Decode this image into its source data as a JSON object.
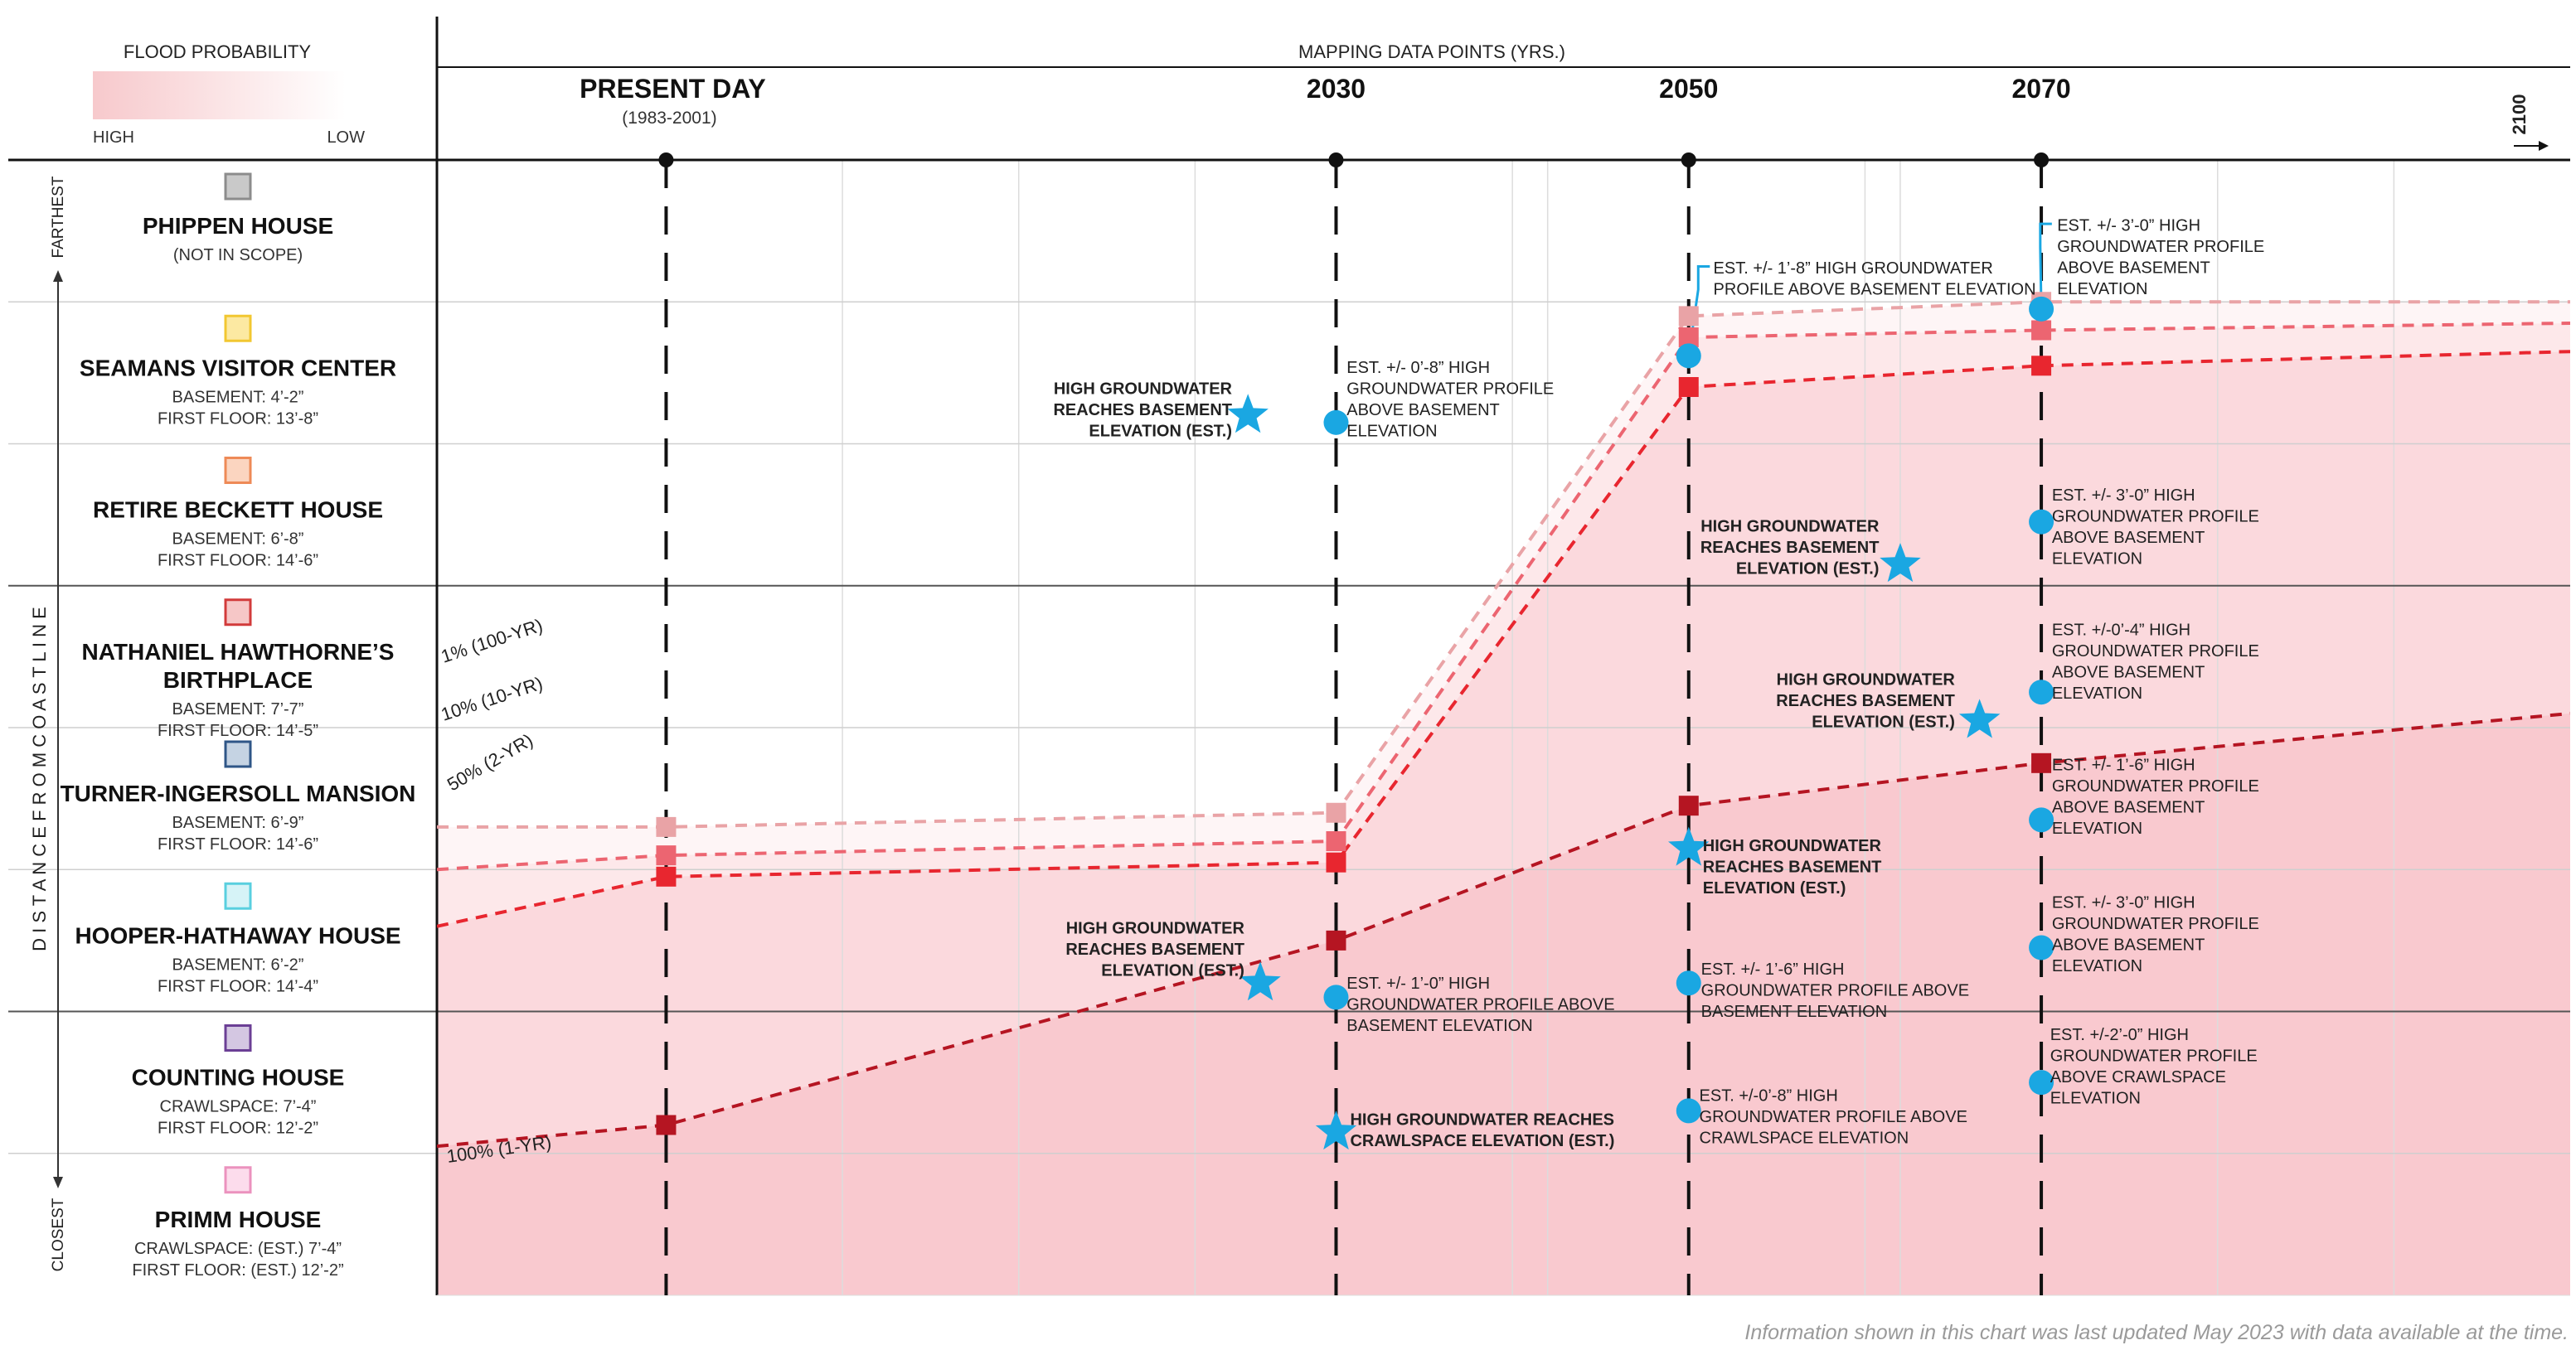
{
  "chart_data": {
    "type": "line",
    "header": "MAPPING DATA POINTS (YRS.)",
    "legend": {
      "title": "FLOOD PROBABILITY",
      "high": "HIGH",
      "low": "LOW"
    },
    "y_axis": {
      "label": "DISTANCE FROM COASTLINE",
      "top_label": "FARTHEST",
      "bottom_label": "CLOSEST"
    },
    "years": [
      {
        "label": "PRESENT DAY",
        "sub": "(1983-2001)",
        "value": 1992
      },
      {
        "label": "2030",
        "value": 2030
      },
      {
        "label": "2050",
        "value": 2050
      },
      {
        "label": "2070",
        "value": 2070
      }
    ],
    "end_label": "2100",
    "x_range": [
      1983,
      2100
    ],
    "y_range": [
      0,
      8
    ],
    "buildings": [
      {
        "name": "PHIPPEN HOUSE",
        "details": [
          "(NOT IN SCOPE)"
        ],
        "color": "#c9c9c9",
        "edge": "#8c8c8c"
      },
      {
        "name": "SEAMANS VISITOR CENTER",
        "details": [
          "BASEMENT: 4’-2”",
          "FIRST FLOOR: 13’-8”"
        ],
        "color": "#fce9a2",
        "edge": "#f2c731"
      },
      {
        "name": "RETIRE BECKETT HOUSE",
        "details": [
          "BASEMENT: 6’-8”",
          "FIRST FLOOR: 14’-6”"
        ],
        "color": "#fbd5c0",
        "edge": "#ee8a57"
      },
      {
        "name": "NATHANIEL HAWTHORNE’S",
        "name2": "BIRTHPLACE",
        "details": [
          "BASEMENT: 7’-7”",
          "FIRST FLOOR: 14’-5”"
        ],
        "color": "#f6c7c7",
        "edge": "#d23b3b"
      },
      {
        "name": "TURNER-INGERSOLL MANSION",
        "details": [
          "BASEMENT: 6’-9”",
          "FIRST FLOOR: 14’-6”"
        ],
        "color": "#c5d3e3",
        "edge": "#2f5687"
      },
      {
        "name": "HOOPER-HATHAWAY HOUSE",
        "details": [
          "BASEMENT: 6’-2”",
          "FIRST FLOOR: 14’-4”"
        ],
        "color": "#d6f3f7",
        "edge": "#59cfdf"
      },
      {
        "name": "COUNTING HOUSE",
        "details": [
          "CRAWLSPACE: 7’-4”",
          "FIRST FLOOR: 12’-2”"
        ],
        "color": "#d4c7e2",
        "edge": "#6b3f95"
      },
      {
        "name": "PRIMM HOUSE",
        "details": [
          "CRAWLSPACE: (EST.) 7’-4”",
          "FIRST FLOOR: (EST.) 12’-2”"
        ],
        "color": "#fcdcec",
        "edge": "#eb92be"
      }
    ],
    "series": [
      {
        "name": "1% (100-YR)",
        "color": "#e9a3a6",
        "dash": true,
        "opacity": 0.06,
        "points": [
          [
            1979,
            3.3
          ],
          [
            1992,
            3.3
          ],
          [
            2030,
            3.4
          ],
          [
            2050,
            6.9
          ],
          [
            2070,
            7.0
          ],
          [
            2100,
            7.0
          ]
        ]
      },
      {
        "name": "10% (10-YR)",
        "color": "#ec6571",
        "dash": true,
        "opacity": 0.08,
        "points": [
          [
            1979,
            3.0
          ],
          [
            1992,
            3.1
          ],
          [
            2030,
            3.2
          ],
          [
            2050,
            6.75
          ],
          [
            2070,
            6.8
          ],
          [
            2100,
            6.85
          ]
        ]
      },
      {
        "name": "50% (2-YR)",
        "color": "#e8262f",
        "dash": true,
        "opacity": 0.1,
        "points": [
          [
            1979,
            2.6
          ],
          [
            1992,
            2.95
          ],
          [
            2030,
            3.05
          ],
          [
            2050,
            6.4
          ],
          [
            2070,
            6.55
          ],
          [
            2100,
            6.65
          ]
        ]
      },
      {
        "name": "100% (1-YR)",
        "color": "#b51522",
        "dash": true,
        "opacity": 0.12,
        "points": [
          [
            1979,
            1.05
          ],
          [
            1992,
            1.2
          ],
          [
            2030,
            2.5
          ],
          [
            2050,
            3.45
          ],
          [
            2070,
            3.75
          ],
          [
            2100,
            4.1
          ]
        ]
      }
    ],
    "circles": [
      {
        "x": 2030,
        "y": 6.15
      },
      {
        "x": 2030,
        "y": 2.1
      },
      {
        "x": 2050,
        "y": 6.62
      },
      {
        "x": 2050,
        "y": 2.2
      },
      {
        "x": 2050,
        "y": 1.3
      },
      {
        "x": 2070,
        "y": 6.95
      },
      {
        "x": 2070,
        "y": 5.45
      },
      {
        "x": 2070,
        "y": 4.25
      },
      {
        "x": 2070,
        "y": 3.35
      },
      {
        "x": 2070,
        "y": 2.45
      },
      {
        "x": 2070,
        "y": 1.5
      }
    ],
    "stars": [
      {
        "x": 2025,
        "y": 6.2
      },
      {
        "x": 2062,
        "y": 5.15
      },
      {
        "x": 2066.5,
        "y": 4.05
      },
      {
        "x": 2050,
        "y": 3.15
      },
      {
        "x": 2025.7,
        "y": 2.2
      },
      {
        "x": 2030,
        "y": 1.15
      }
    ],
    "annotations": [
      {
        "lines": [
          "HIGH GROUNDWATER",
          "REACHES BASEMENT",
          "ELEVATION (EST.)"
        ],
        "bold": true,
        "anchor": "end",
        "x": 2024.1,
        "y": 6.35
      },
      {
        "lines": [
          "EST. +/- 0’-8” HIGH",
          "GROUNDWATER PROFILE",
          "ABOVE BASEMENT",
          "ELEVATION"
        ],
        "bold": false,
        "anchor": "start",
        "x": 2030.6,
        "y": 6.5
      },
      {
        "lines": [
          "EST. +/- 1’-8” HIGH GROUNDWATER",
          "PROFILE ABOVE BASEMENT ELEVATION"
        ],
        "bold": false,
        "anchor": "start",
        "x": 2051.4,
        "y": 7.2
      },
      {
        "lines": [
          "EST. +/- 3’-0” HIGH",
          "GROUNDWATER PROFILE",
          "ABOVE BASEMENT",
          "ELEVATION"
        ],
        "bold": false,
        "anchor": "start",
        "x": 2070.9,
        "y": 7.5
      },
      {
        "lines": [
          "HIGH GROUNDWATER",
          "REACHES BASEMENT",
          "ELEVATION (EST.)"
        ],
        "bold": true,
        "anchor": "end",
        "x": 2060.8,
        "y": 5.38
      },
      {
        "lines": [
          "EST. +/- 3’-0” HIGH",
          "GROUNDWATER PROFILE",
          "ABOVE BASEMENT",
          "ELEVATION"
        ],
        "bold": false,
        "anchor": "start",
        "x": 2070.6,
        "y": 5.6
      },
      {
        "lines": [
          "HIGH GROUNDWATER",
          "REACHES BASEMENT",
          "ELEVATION (EST.)"
        ],
        "bold": true,
        "anchor": "end",
        "x": 2065.1,
        "y": 4.3
      },
      {
        "lines": [
          "EST. +/-0’-4” HIGH",
          "GROUNDWATER PROFILE",
          "ABOVE BASEMENT",
          "ELEVATION"
        ],
        "bold": false,
        "anchor": "start",
        "x": 2070.6,
        "y": 4.65
      },
      {
        "lines": [
          "EST. +/- 1’-6” HIGH",
          "GROUNDWATER PROFILE",
          "ABOVE BASEMENT",
          "ELEVATION"
        ],
        "bold": false,
        "anchor": "start",
        "x": 2070.6,
        "y": 3.7
      },
      {
        "lines": [
          "HIGH GROUNDWATER",
          "REACHES BASEMENT",
          "ELEVATION (EST.)"
        ],
        "bold": true,
        "anchor": "start",
        "x": 2050.8,
        "y": 3.13
      },
      {
        "lines": [
          "HIGH GROUNDWATER",
          "REACHES BASEMENT",
          "ELEVATION (EST.)"
        ],
        "bold": true,
        "anchor": "end",
        "x": 2024.8,
        "y": 2.55
      },
      {
        "lines": [
          "EST. +/- 1’-0” HIGH",
          "GROUNDWATER PROFILE ABOVE",
          "BASEMENT ELEVATION"
        ],
        "bold": false,
        "anchor": "start",
        "x": 2030.6,
        "y": 2.16
      },
      {
        "lines": [
          "EST. +/- 1’-6” HIGH",
          "GROUNDWATER PROFILE ABOVE",
          "BASEMENT ELEVATION"
        ],
        "bold": false,
        "anchor": "start",
        "x": 2050.7,
        "y": 2.26
      },
      {
        "lines": [
          "EST. +/- 3’-0” HIGH",
          "GROUNDWATER PROFILE",
          "ABOVE BASEMENT",
          "ELEVATION"
        ],
        "bold": false,
        "anchor": "start",
        "x": 2070.6,
        "y": 2.73
      },
      {
        "lines": [
          "EST. +/-2’-0” HIGH",
          "GROUNDWATER PROFILE",
          "ABOVE CRAWLSPACE",
          "ELEVATION"
        ],
        "bold": false,
        "anchor": "start",
        "x": 2070.5,
        "y": 1.8
      },
      {
        "lines": [
          "EST. +/-0’-8” HIGH",
          "GROUNDWATER PROFILE ABOVE",
          "CRAWLSPACE ELEVATION"
        ],
        "bold": false,
        "anchor": "start",
        "x": 2050.6,
        "y": 1.37
      },
      {
        "lines": [
          "HIGH GROUNDWATER REACHES",
          "CRAWLSPACE ELEVATION (EST.)"
        ],
        "bold": true,
        "anchor": "start",
        "x": 2030.8,
        "y": 1.2
      }
    ],
    "leaders": [
      {
        "from": [
          2050,
          6.62
        ],
        "to": [
          2051.2,
          7.25
        ]
      },
      {
        "from": [
          2070,
          6.95
        ],
        "to": [
          2070.6,
          7.55
        ]
      }
    ],
    "footer": "Information shown in this chart was last updated May 2023 with data available at the time."
  }
}
